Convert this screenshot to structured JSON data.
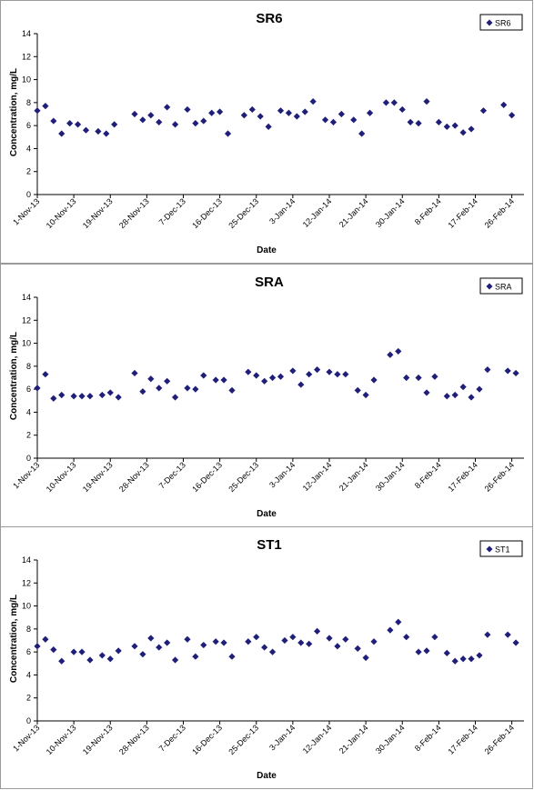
{
  "chart_data": [
    {
      "type": "scatter",
      "title": "SR6",
      "xlabel": "Date",
      "ylabel": "Concentration, mg/L",
      "ylim": [
        0,
        14
      ],
      "yticks": [
        0,
        2,
        4,
        6,
        8,
        10,
        12,
        14
      ],
      "xlim": [
        "2013-11-01",
        "2014-03-01"
      ],
      "xtick_labels": [
        "1-Nov-13",
        "10-Nov-13",
        "19-Nov-13",
        "28-Nov-13",
        "7-Dec-13",
        "16-Dec-13",
        "25-Dec-13",
        "3-Jan-14",
        "12-Jan-14",
        "21-Jan-14",
        "30-Jan-14",
        "8-Feb-14",
        "17-Feb-14",
        "26-Feb-14"
      ],
      "grid": false,
      "legend_position": "top-right",
      "marker_color": "#1f1f7a",
      "series": [
        {
          "name": "SR6",
          "points": [
            [
              "2013-11-01",
              7.3
            ],
            [
              "2013-11-03",
              7.7
            ],
            [
              "2013-11-05",
              6.4
            ],
            [
              "2013-11-07",
              5.3
            ],
            [
              "2013-11-09",
              6.2
            ],
            [
              "2013-11-11",
              6.1
            ],
            [
              "2013-11-13",
              5.6
            ],
            [
              "2013-11-16",
              5.5
            ],
            [
              "2013-11-18",
              5.3
            ],
            [
              "2013-11-20",
              6.1
            ],
            [
              "2013-11-25",
              7.0
            ],
            [
              "2013-11-27",
              6.5
            ],
            [
              "2013-11-29",
              6.9
            ],
            [
              "2013-12-01",
              6.3
            ],
            [
              "2013-12-03",
              7.6
            ],
            [
              "2013-12-05",
              6.1
            ],
            [
              "2013-12-08",
              7.4
            ],
            [
              "2013-12-10",
              6.2
            ],
            [
              "2013-12-12",
              6.4
            ],
            [
              "2013-12-14",
              7.1
            ],
            [
              "2013-12-16",
              7.2
            ],
            [
              "2013-12-18",
              5.3
            ],
            [
              "2013-12-22",
              6.9
            ],
            [
              "2013-12-24",
              7.4
            ],
            [
              "2013-12-26",
              6.8
            ],
            [
              "2013-12-28",
              5.9
            ],
            [
              "2013-12-31",
              7.3
            ],
            [
              "2014-01-02",
              7.1
            ],
            [
              "2014-01-04",
              6.8
            ],
            [
              "2014-01-06",
              7.2
            ],
            [
              "2014-01-08",
              8.1
            ],
            [
              "2014-01-11",
              6.5
            ],
            [
              "2014-01-13",
              6.3
            ],
            [
              "2014-01-15",
              7.0
            ],
            [
              "2014-01-18",
              6.5
            ],
            [
              "2014-01-20",
              5.3
            ],
            [
              "2014-01-22",
              7.1
            ],
            [
              "2014-01-26",
              8.0
            ],
            [
              "2014-01-28",
              8.0
            ],
            [
              "2014-01-30",
              7.4
            ],
            [
              "2014-02-01",
              6.3
            ],
            [
              "2014-02-03",
              6.2
            ],
            [
              "2014-02-05",
              8.1
            ],
            [
              "2014-02-08",
              6.3
            ],
            [
              "2014-02-10",
              5.9
            ],
            [
              "2014-02-12",
              6.0
            ],
            [
              "2014-02-14",
              5.4
            ],
            [
              "2014-02-16",
              5.7
            ],
            [
              "2014-02-19",
              7.3
            ],
            [
              "2014-02-24",
              7.8
            ],
            [
              "2014-02-26",
              6.9
            ]
          ]
        }
      ]
    },
    {
      "type": "scatter",
      "title": "SRA",
      "xlabel": "Date",
      "ylabel": "Concentration, mg/L",
      "ylim": [
        0,
        14
      ],
      "yticks": [
        0,
        2,
        4,
        6,
        8,
        10,
        12,
        14
      ],
      "xlim": [
        "2013-11-01",
        "2014-03-01"
      ],
      "xtick_labels": [
        "1-Nov-13",
        "10-Nov-13",
        "19-Nov-13",
        "28-Nov-13",
        "7-Dec-13",
        "16-Dec-13",
        "25-Dec-13",
        "3-Jan-14",
        "12-Jan-14",
        "21-Jan-14",
        "30-Jan-14",
        "8-Feb-14",
        "17-Feb-14",
        "26-Feb-14"
      ],
      "grid": false,
      "legend_position": "top-right",
      "marker_color": "#1f1f7a",
      "series": [
        {
          "name": "SRA",
          "points": [
            [
              "2013-11-01",
              6.1
            ],
            [
              "2013-11-03",
              7.3
            ],
            [
              "2013-11-05",
              5.2
            ],
            [
              "2013-11-07",
              5.5
            ],
            [
              "2013-11-10",
              5.4
            ],
            [
              "2013-11-12",
              5.4
            ],
            [
              "2013-11-14",
              5.4
            ],
            [
              "2013-11-17",
              5.5
            ],
            [
              "2013-11-19",
              5.7
            ],
            [
              "2013-11-21",
              5.3
            ],
            [
              "2013-11-25",
              7.4
            ],
            [
              "2013-11-27",
              5.8
            ],
            [
              "2013-11-29",
              6.9
            ],
            [
              "2013-12-01",
              6.1
            ],
            [
              "2013-12-03",
              6.7
            ],
            [
              "2013-12-05",
              5.3
            ],
            [
              "2013-12-08",
              6.1
            ],
            [
              "2013-12-10",
              6.0
            ],
            [
              "2013-12-12",
              7.2
            ],
            [
              "2013-12-15",
              6.8
            ],
            [
              "2013-12-17",
              6.8
            ],
            [
              "2013-12-19",
              5.9
            ],
            [
              "2013-12-23",
              7.5
            ],
            [
              "2013-12-25",
              7.2
            ],
            [
              "2013-12-27",
              6.7
            ],
            [
              "2013-12-29",
              7.0
            ],
            [
              "2013-12-31",
              7.1
            ],
            [
              "2014-01-03",
              7.6
            ],
            [
              "2014-01-05",
              6.4
            ],
            [
              "2014-01-07",
              7.3
            ],
            [
              "2014-01-09",
              7.7
            ],
            [
              "2014-01-12",
              7.5
            ],
            [
              "2014-01-14",
              7.3
            ],
            [
              "2014-01-16",
              7.3
            ],
            [
              "2014-01-19",
              5.9
            ],
            [
              "2014-01-21",
              5.5
            ],
            [
              "2014-01-23",
              6.8
            ],
            [
              "2014-01-27",
              9.0
            ],
            [
              "2014-01-29",
              9.3
            ],
            [
              "2014-01-31",
              7.0
            ],
            [
              "2014-02-03",
              7.0
            ],
            [
              "2014-02-05",
              5.7
            ],
            [
              "2014-02-07",
              7.1
            ],
            [
              "2014-02-10",
              5.4
            ],
            [
              "2014-02-12",
              5.5
            ],
            [
              "2014-02-14",
              6.2
            ],
            [
              "2014-02-16",
              5.3
            ],
            [
              "2014-02-18",
              6.0
            ],
            [
              "2014-02-20",
              7.7
            ],
            [
              "2014-02-25",
              7.6
            ],
            [
              "2014-02-27",
              7.4
            ]
          ]
        }
      ]
    },
    {
      "type": "scatter",
      "title": "ST1",
      "xlabel": "Date",
      "ylabel": "Concentration, mg/L",
      "ylim": [
        0,
        14
      ],
      "yticks": [
        0,
        2,
        4,
        6,
        8,
        10,
        12,
        14
      ],
      "xlim": [
        "2013-11-01",
        "2014-03-01"
      ],
      "xtick_labels": [
        "1-Nov-13",
        "10-Nov-13",
        "19-Nov-13",
        "28-Nov-13",
        "7-Dec-13",
        "16-Dec-13",
        "25-Dec-13",
        "3-Jan-14",
        "12-Jan-14",
        "21-Jan-14",
        "30-Jan-14",
        "8-Feb-14",
        "17-Feb-14",
        "26-Feb-14"
      ],
      "grid": false,
      "legend_position": "top-right",
      "marker_color": "#1f1f7a",
      "series": [
        {
          "name": "ST1",
          "points": [
            [
              "2013-11-01",
              6.5
            ],
            [
              "2013-11-03",
              7.1
            ],
            [
              "2013-11-05",
              6.2
            ],
            [
              "2013-11-07",
              5.2
            ],
            [
              "2013-11-10",
              6.0
            ],
            [
              "2013-11-12",
              6.0
            ],
            [
              "2013-11-14",
              5.3
            ],
            [
              "2013-11-17",
              5.7
            ],
            [
              "2013-11-19",
              5.4
            ],
            [
              "2013-11-21",
              6.1
            ],
            [
              "2013-11-25",
              6.5
            ],
            [
              "2013-11-27",
              5.8
            ],
            [
              "2013-11-29",
              7.2
            ],
            [
              "2013-12-01",
              6.4
            ],
            [
              "2013-12-03",
              6.8
            ],
            [
              "2013-12-05",
              5.3
            ],
            [
              "2013-12-08",
              7.1
            ],
            [
              "2013-12-10",
              5.6
            ],
            [
              "2013-12-12",
              6.6
            ],
            [
              "2013-12-15",
              6.9
            ],
            [
              "2013-12-17",
              6.8
            ],
            [
              "2013-12-19",
              5.6
            ],
            [
              "2013-12-23",
              6.9
            ],
            [
              "2013-12-25",
              7.3
            ],
            [
              "2013-12-27",
              6.4
            ],
            [
              "2013-12-29",
              6.0
            ],
            [
              "2014-01-01",
              7.0
            ],
            [
              "2014-01-03",
              7.3
            ],
            [
              "2014-01-05",
              6.8
            ],
            [
              "2014-01-07",
              6.7
            ],
            [
              "2014-01-09",
              7.8
            ],
            [
              "2014-01-12",
              7.2
            ],
            [
              "2014-01-14",
              6.5
            ],
            [
              "2014-01-16",
              7.1
            ],
            [
              "2014-01-19",
              6.3
            ],
            [
              "2014-01-21",
              5.5
            ],
            [
              "2014-01-23",
              6.9
            ],
            [
              "2014-01-27",
              7.9
            ],
            [
              "2014-01-29",
              8.6
            ],
            [
              "2014-01-31",
              7.3
            ],
            [
              "2014-02-03",
              6.0
            ],
            [
              "2014-02-05",
              6.1
            ],
            [
              "2014-02-07",
              7.3
            ],
            [
              "2014-02-10",
              5.9
            ],
            [
              "2014-02-12",
              5.2
            ],
            [
              "2014-02-14",
              5.4
            ],
            [
              "2014-02-16",
              5.4
            ],
            [
              "2014-02-18",
              5.7
            ],
            [
              "2014-02-20",
              7.5
            ],
            [
              "2014-02-25",
              7.5
            ],
            [
              "2014-02-27",
              6.8
            ]
          ]
        }
      ]
    }
  ]
}
